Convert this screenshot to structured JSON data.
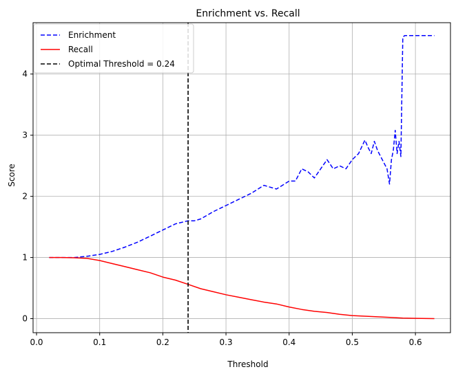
{
  "chart_data": {
    "type": "line",
    "title": "Enrichment vs. Recall",
    "xlabel": "Threshold",
    "ylabel": "Score",
    "xlim": [
      -0.0055,
      0.6555
    ],
    "ylim": [
      -0.23,
      4.84
    ],
    "xticks": [
      0.0,
      0.1,
      0.2,
      0.3,
      0.4,
      0.5,
      0.6
    ],
    "xtick_labels": [
      "0.0",
      "0.1",
      "0.2",
      "0.3",
      "0.4",
      "0.5",
      "0.6"
    ],
    "yticks": [
      0,
      1,
      2,
      3,
      4
    ],
    "ytick_labels": [
      "0",
      "1",
      "2",
      "3",
      "4"
    ],
    "grid": true,
    "legend_position": "upper-left",
    "series": [
      {
        "name": "Enrichment",
        "color": "#0000ff",
        "style": "dashed",
        "x": [
          0.02,
          0.04,
          0.06,
          0.08,
          0.1,
          0.12,
          0.14,
          0.16,
          0.18,
          0.2,
          0.22,
          0.24,
          0.25,
          0.26,
          0.28,
          0.3,
          0.32,
          0.34,
          0.36,
          0.38,
          0.4,
          0.41,
          0.42,
          0.43,
          0.44,
          0.45,
          0.46,
          0.47,
          0.48,
          0.49,
          0.5,
          0.51,
          0.52,
          0.525,
          0.53,
          0.535,
          0.54,
          0.55,
          0.555,
          0.559,
          0.562,
          0.565,
          0.568,
          0.571,
          0.574,
          0.577,
          0.58,
          0.583,
          0.59,
          0.61,
          0.63
        ],
        "values": [
          1.0,
          1.0,
          1.0,
          1.02,
          1.05,
          1.1,
          1.17,
          1.25,
          1.35,
          1.45,
          1.55,
          1.6,
          1.6,
          1.63,
          1.75,
          1.85,
          1.95,
          2.05,
          2.18,
          2.12,
          2.25,
          2.25,
          2.45,
          2.4,
          2.3,
          2.45,
          2.6,
          2.45,
          2.5,
          2.45,
          2.6,
          2.7,
          2.92,
          2.8,
          2.7,
          2.9,
          2.75,
          2.55,
          2.45,
          2.2,
          2.6,
          2.75,
          3.08,
          2.7,
          2.9,
          2.65,
          4.6,
          4.63,
          4.63,
          4.63,
          4.63
        ]
      },
      {
        "name": "Recall",
        "color": "#ff0000",
        "style": "solid",
        "x": [
          0.02,
          0.04,
          0.06,
          0.08,
          0.1,
          0.12,
          0.14,
          0.16,
          0.18,
          0.2,
          0.22,
          0.24,
          0.26,
          0.28,
          0.3,
          0.32,
          0.34,
          0.36,
          0.38,
          0.4,
          0.42,
          0.44,
          0.46,
          0.48,
          0.5,
          0.52,
          0.54,
          0.56,
          0.58,
          0.6,
          0.63
        ],
        "values": [
          1.0,
          1.0,
          0.995,
          0.985,
          0.95,
          0.9,
          0.85,
          0.8,
          0.75,
          0.68,
          0.63,
          0.56,
          0.49,
          0.44,
          0.39,
          0.35,
          0.31,
          0.27,
          0.24,
          0.19,
          0.15,
          0.12,
          0.1,
          0.07,
          0.05,
          0.04,
          0.03,
          0.02,
          0.01,
          0.005,
          0.0
        ]
      }
    ],
    "vline": {
      "name": "Optimal Threshold = 0.24",
      "x": 0.24,
      "color": "#000000",
      "style": "dashed"
    },
    "legend": [
      "Enrichment",
      "Recall",
      "Optimal Threshold = 0.24"
    ]
  }
}
